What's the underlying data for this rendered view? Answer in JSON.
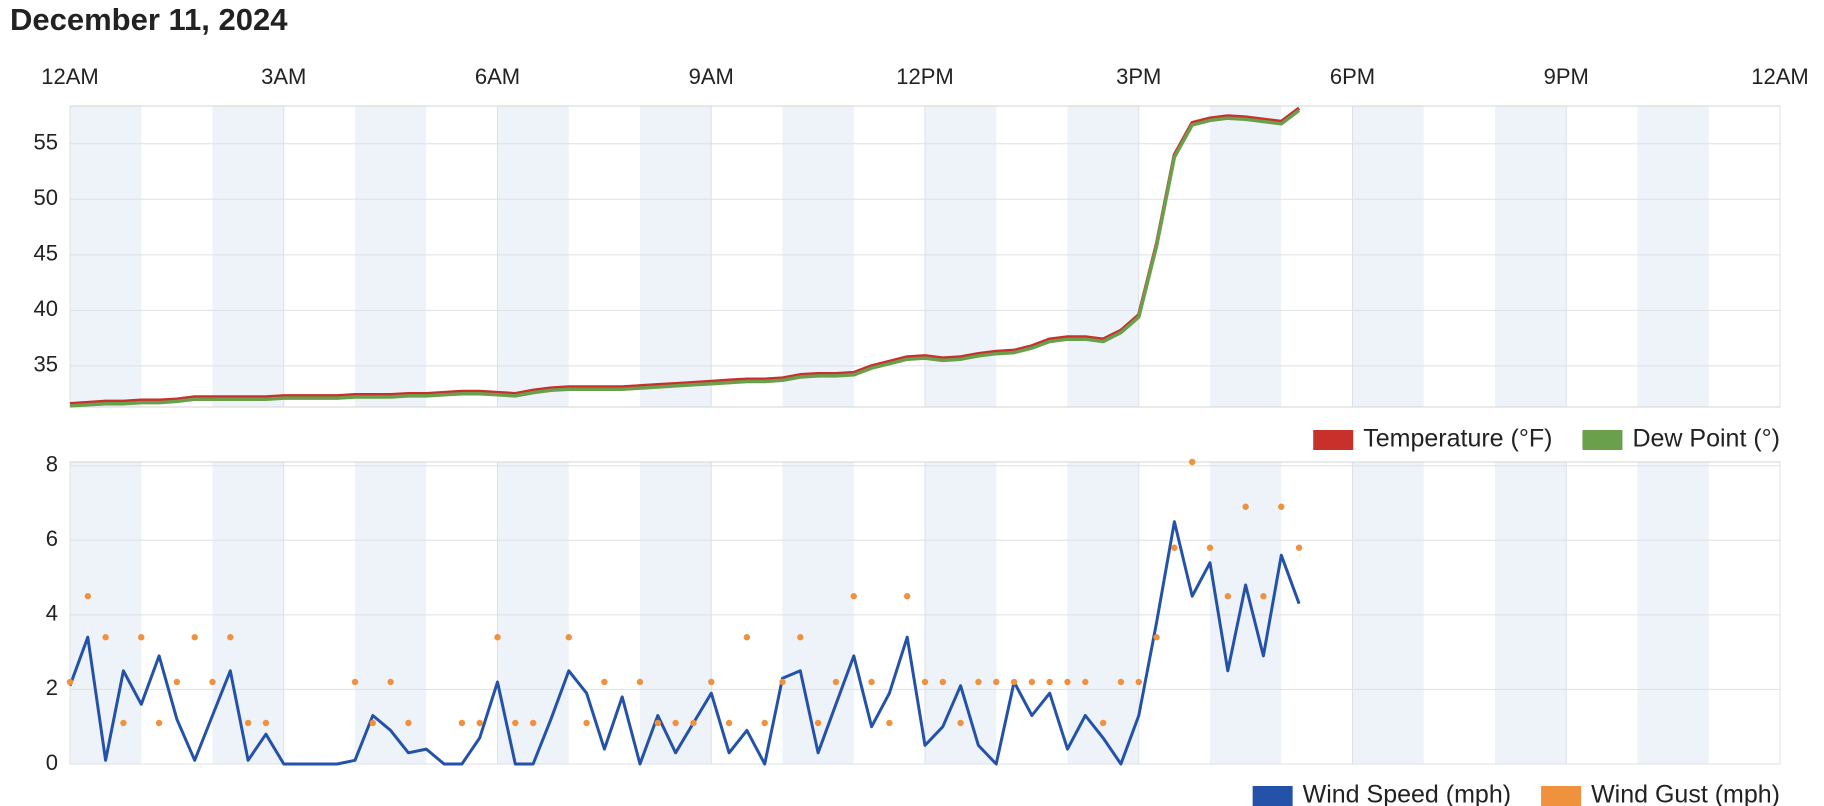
{
  "chart_data": [
    {
      "type": "line",
      "title": "December 11, 2024",
      "xlim": [
        0,
        24
      ],
      "xticks": [
        {
          "value": 0,
          "label": "12AM"
        },
        {
          "value": 3,
          "label": "3AM"
        },
        {
          "value": 6,
          "label": "6AM"
        },
        {
          "value": 9,
          "label": "9AM"
        },
        {
          "value": 12,
          "label": "12PM"
        },
        {
          "value": 15,
          "label": "3PM"
        },
        {
          "value": 18,
          "label": "6PM"
        },
        {
          "value": 21,
          "label": "9PM"
        },
        {
          "value": 24,
          "label": "12AM"
        }
      ],
      "ylim": [
        31.3,
        58.4
      ],
      "yticks": [
        35,
        40,
        45,
        50,
        55
      ],
      "grid": true,
      "legend": "below-right",
      "x": [
        0,
        0.25,
        0.5,
        0.75,
        1,
        1.25,
        1.5,
        1.75,
        2,
        2.25,
        2.5,
        2.75,
        3,
        3.25,
        3.5,
        3.75,
        4,
        4.25,
        4.5,
        4.75,
        5,
        5.25,
        5.5,
        5.75,
        6,
        6.25,
        6.5,
        6.75,
        7,
        7.25,
        7.5,
        7.75,
        8,
        8.25,
        8.5,
        8.75,
        9,
        9.25,
        9.5,
        9.75,
        10,
        10.25,
        10.5,
        10.75,
        11,
        11.25,
        11.5,
        11.75,
        12,
        12.25,
        12.5,
        12.75,
        13,
        13.25,
        13.5,
        13.75,
        14,
        14.25,
        14.5,
        14.75,
        15,
        15.25,
        15.5,
        15.75,
        16,
        16.25,
        16.5,
        16.75,
        17,
        17.25
      ],
      "series": [
        {
          "name": "Temperature (°F)",
          "color": "#c9302c",
          "values": [
            31.6,
            31.7,
            31.8,
            31.8,
            31.9,
            31.9,
            32.0,
            32.2,
            32.2,
            32.2,
            32.2,
            32.2,
            32.3,
            32.3,
            32.3,
            32.3,
            32.4,
            32.4,
            32.4,
            32.5,
            32.5,
            32.6,
            32.7,
            32.7,
            32.6,
            32.5,
            32.8,
            33.0,
            33.1,
            33.1,
            33.1,
            33.1,
            33.2,
            33.3,
            33.4,
            33.5,
            33.6,
            33.7,
            33.8,
            33.8,
            33.9,
            34.2,
            34.3,
            34.3,
            34.4,
            35.0,
            35.4,
            35.8,
            35.9,
            35.7,
            35.8,
            36.1,
            36.3,
            36.4,
            36.8,
            37.4,
            37.6,
            37.6,
            37.4,
            38.2,
            39.6,
            46.0,
            54.0,
            56.9,
            57.3,
            57.5,
            57.4,
            57.2,
            57.0,
            58.2
          ]
        },
        {
          "name": "Dew Point (°)",
          "color": "#6a9f4c",
          "values": [
            31.4,
            31.5,
            31.6,
            31.6,
            31.7,
            31.7,
            31.8,
            32.0,
            32.0,
            32.0,
            32.0,
            32.0,
            32.1,
            32.1,
            32.1,
            32.1,
            32.2,
            32.2,
            32.2,
            32.3,
            32.3,
            32.4,
            32.5,
            32.5,
            32.4,
            32.3,
            32.6,
            32.8,
            32.9,
            32.9,
            32.9,
            32.9,
            33.0,
            33.1,
            33.2,
            33.3,
            33.4,
            33.5,
            33.6,
            33.6,
            33.7,
            34.0,
            34.1,
            34.1,
            34.2,
            34.8,
            35.2,
            35.6,
            35.7,
            35.5,
            35.6,
            35.9,
            36.1,
            36.2,
            36.6,
            37.2,
            37.4,
            37.4,
            37.2,
            38.0,
            39.4,
            45.8,
            53.8,
            56.7,
            57.1,
            57.3,
            57.2,
            57.0,
            56.8,
            58.0
          ]
        }
      ]
    },
    {
      "type": "line",
      "xlim": [
        0,
        24
      ],
      "ylim": [
        0,
        8.1
      ],
      "yticks": [
        0,
        2,
        4,
        6,
        8
      ],
      "grid": true,
      "legend": "below-right",
      "x": [
        0,
        0.25,
        0.5,
        0.75,
        1,
        1.25,
        1.5,
        1.75,
        2,
        2.25,
        2.5,
        2.75,
        3,
        3.25,
        3.5,
        3.75,
        4,
        4.25,
        4.5,
        4.75,
        5,
        5.25,
        5.5,
        5.75,
        6,
        6.25,
        6.5,
        6.75,
        7,
        7.25,
        7.5,
        7.75,
        8,
        8.25,
        8.5,
        8.75,
        9,
        9.25,
        9.5,
        9.75,
        10,
        10.25,
        10.5,
        10.75,
        11,
        11.25,
        11.5,
        11.75,
        12,
        12.25,
        12.5,
        12.75,
        13,
        13.25,
        13.5,
        13.75,
        14,
        14.25,
        14.5,
        14.75,
        15,
        15.25,
        15.5,
        15.75,
        16,
        16.25,
        16.5,
        16.75,
        17,
        17.25
      ],
      "series": [
        {
          "name": "Wind Speed (mph)",
          "color": "#2452a8",
          "values": [
            2.1,
            3.4,
            0.1,
            2.5,
            1.6,
            2.9,
            1.2,
            0.1,
            1.3,
            2.5,
            0.1,
            0.8,
            0,
            0,
            0,
            0,
            0.1,
            1.3,
            0.9,
            0.3,
            0.4,
            0,
            0,
            0.7,
            2.2,
            0,
            0,
            1.2,
            2.5,
            1.9,
            0.4,
            1.8,
            0,
            1.3,
            0.3,
            1.1,
            1.9,
            0.3,
            0.9,
            0,
            2.3,
            2.5,
            0.3,
            1.6,
            2.9,
            1.0,
            1.9,
            3.4,
            0.5,
            1.0,
            2.1,
            0.5,
            0,
            2.2,
            1.3,
            1.9,
            0.4,
            1.3,
            0.7,
            0,
            1.3,
            3.8,
            6.5,
            4.5,
            5.4,
            2.5,
            4.8,
            2.9,
            5.6,
            4.3
          ]
        },
        {
          "name": "Wind Gust (mph)",
          "color": "#f0913e",
          "markers_only": true,
          "values": [
            2.2,
            4.5,
            3.4,
            1.1,
            3.4,
            1.1,
            2.2,
            3.4,
            2.2,
            3.4,
            1.1,
            1.1,
            null,
            null,
            null,
            null,
            2.2,
            1.1,
            2.2,
            1.1,
            null,
            null,
            1.1,
            1.1,
            3.4,
            1.1,
            1.1,
            null,
            3.4,
            1.1,
            2.2,
            null,
            2.2,
            1.1,
            1.1,
            1.1,
            2.2,
            1.1,
            3.4,
            1.1,
            2.2,
            3.4,
            1.1,
            2.2,
            4.5,
            2.2,
            1.1,
            4.5,
            2.2,
            2.2,
            1.1,
            2.2,
            2.2,
            2.2,
            2.2,
            2.2,
            2.2,
            2.2,
            1.1,
            2.2,
            2.2,
            3.4,
            5.8,
            8.1,
            5.8,
            4.5,
            6.9,
            4.5,
            6.9,
            5.8
          ]
        }
      ]
    }
  ]
}
